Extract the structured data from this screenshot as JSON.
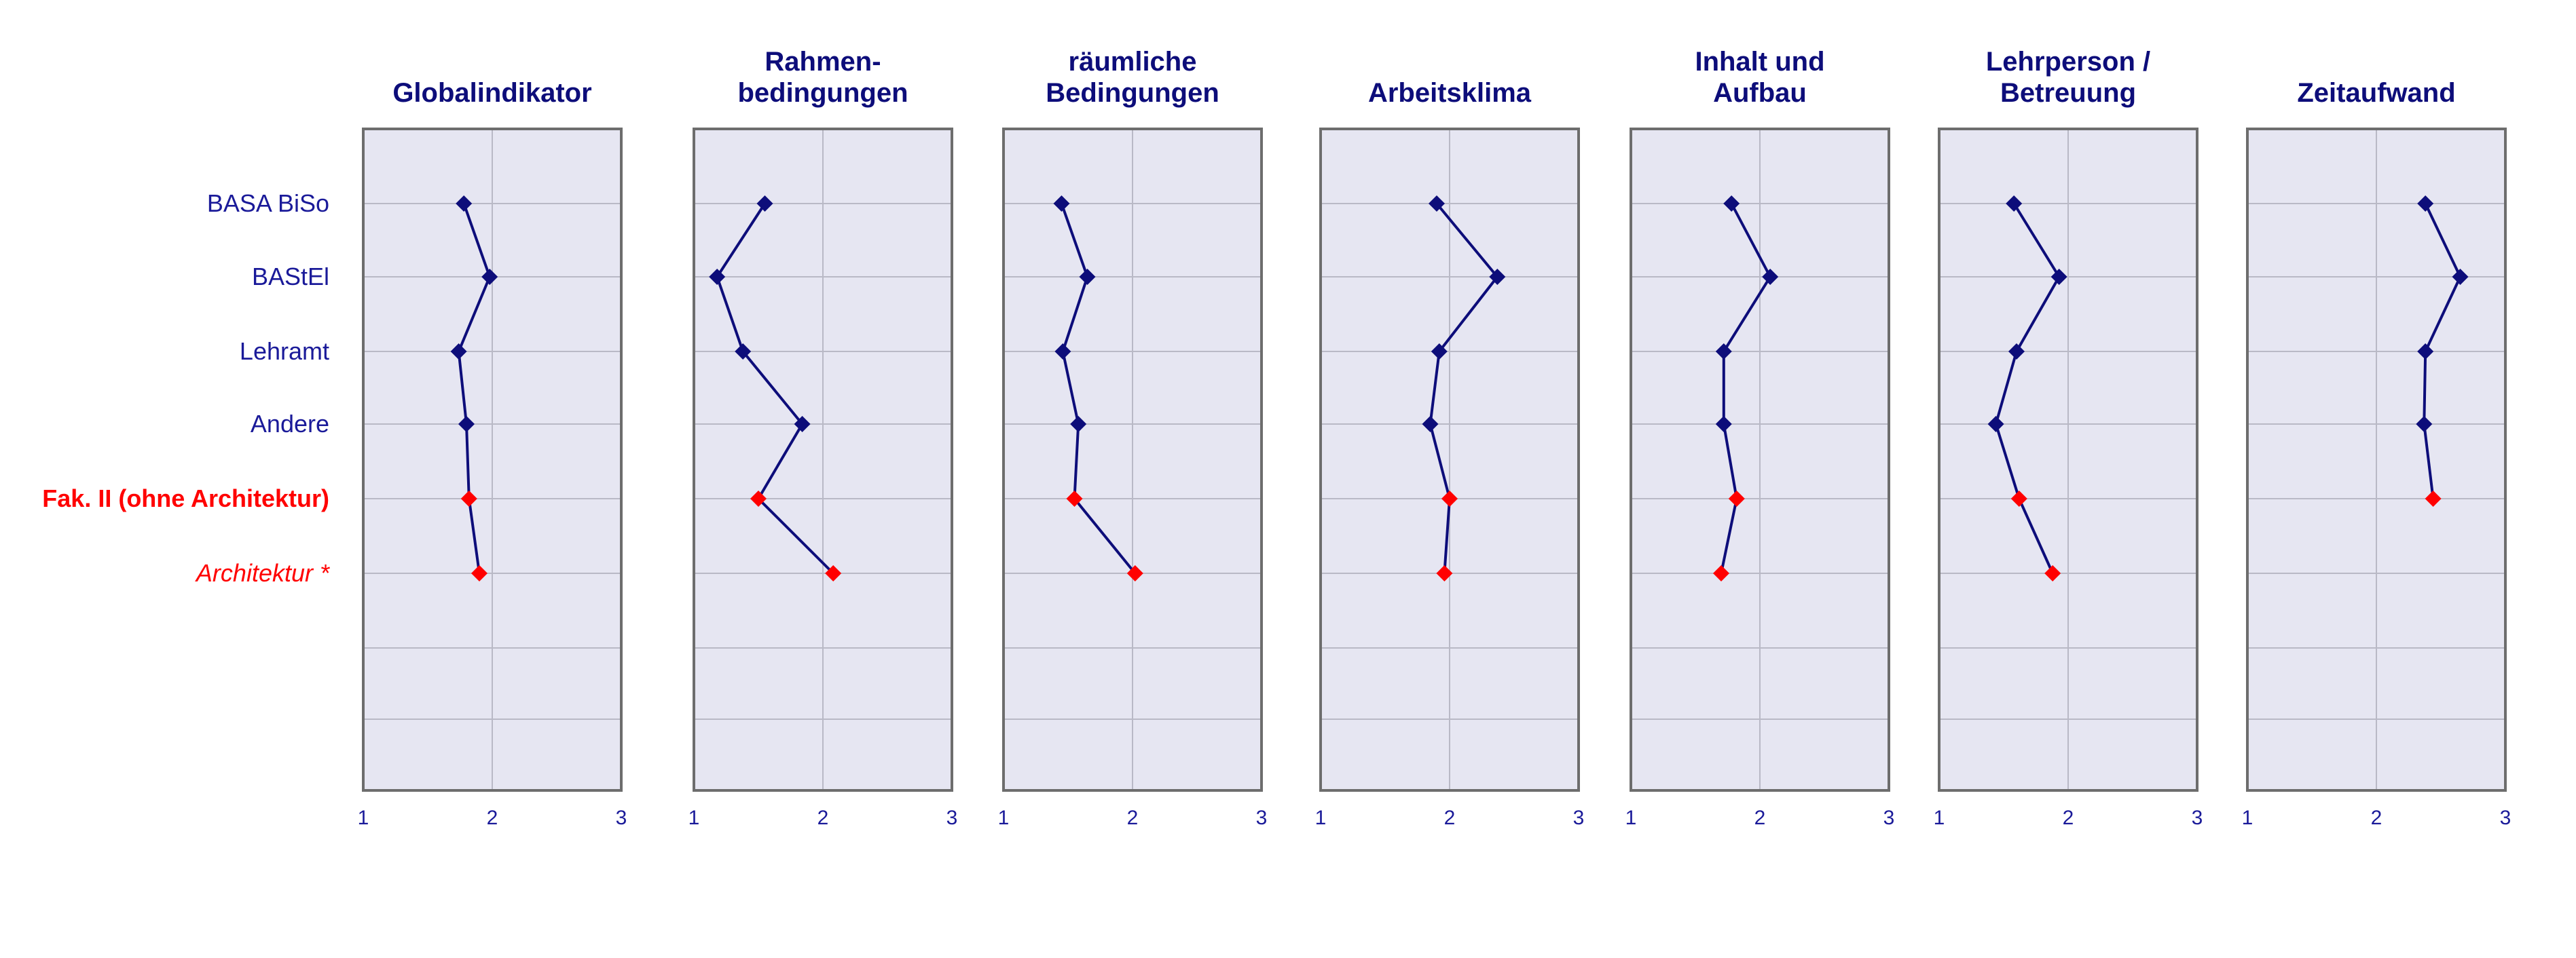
{
  "chart_data": {
    "type": "line",
    "orientation": "vertical-profile",
    "xlim": [
      1,
      3
    ],
    "xticks": [
      1,
      2,
      3
    ],
    "rows": [
      "BASA BiSo",
      "BAStEl",
      "Lehramt",
      "Andere",
      "Fak. II (ohne Architektur)",
      "Architektur *"
    ],
    "row_colors": [
      "#1a1a99",
      "#1a1a99",
      "#1a1a99",
      "#1a1a99",
      "#ff0000",
      "#ff0000"
    ],
    "series_color": "#0d0d7a",
    "highlight_color": "#ff0000",
    "panels": [
      {
        "title": [
          "Globalindikator"
        ],
        "values": [
          1.78,
          1.98,
          1.74,
          1.8,
          1.82,
          1.9
        ]
      },
      {
        "title": [
          "Rahmen-",
          "bedingungen"
        ],
        "values": [
          1.55,
          1.18,
          1.38,
          1.84,
          1.5,
          2.08
        ]
      },
      {
        "title": [
          "räumliche",
          "Bedingungen"
        ],
        "values": [
          1.45,
          1.65,
          1.46,
          1.58,
          1.55,
          2.02
        ]
      },
      {
        "title": [
          "Arbeitsklima"
        ],
        "values": [
          1.9,
          2.37,
          1.92,
          1.85,
          2.0,
          1.96
        ]
      },
      {
        "title": [
          "Inhalt und",
          "Aufbau"
        ],
        "values": [
          1.78,
          2.08,
          1.72,
          1.72,
          1.82,
          1.7
        ]
      },
      {
        "title": [
          "Lehrperson /",
          "Betreuung"
        ],
        "values": [
          1.58,
          1.93,
          1.6,
          1.44,
          1.62,
          1.88
        ]
      },
      {
        "title": [
          "Zeitaufwand"
        ],
        "values": [
          2.38,
          2.65,
          2.38,
          2.37,
          2.44,
          null
        ]
      }
    ]
  }
}
